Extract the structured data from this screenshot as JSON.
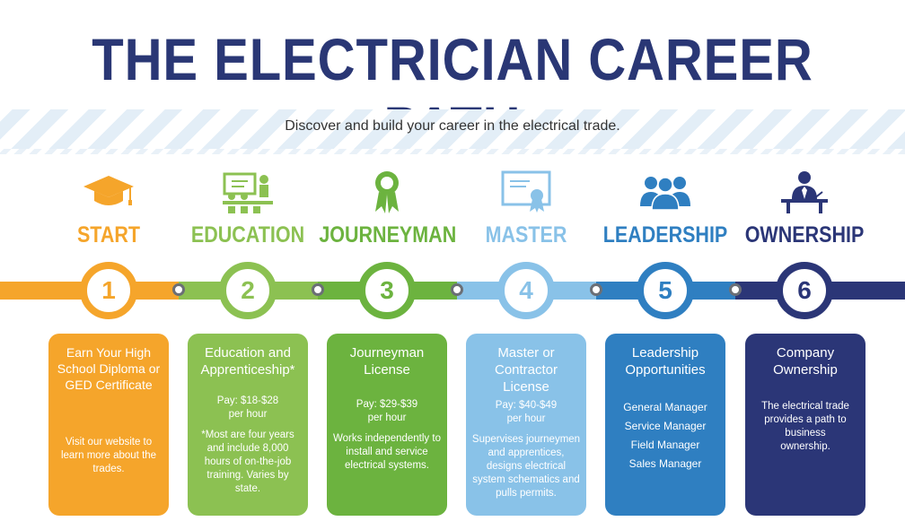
{
  "title": "THE ELECTRICIAN CAREER PATH",
  "subtitle": "Discover and build your career in the electrical trade.",
  "colors": {
    "title": "#2a3775",
    "start": "#f5a52b",
    "education": "#8cc152",
    "journeyman": "#6cb33f",
    "master": "#89c2e8",
    "leadership": "#2f7fc1",
    "ownership": "#2b3677"
  },
  "steps": [
    {
      "label": "START",
      "number": "1",
      "icon": "graduation-cap-icon",
      "card_title": "Earn Your High School Diploma or GED Certificate",
      "pay": "",
      "body": "Visit our website to learn more about the trades.",
      "list": []
    },
    {
      "label": "EDUCATION",
      "number": "2",
      "icon": "classroom-icon",
      "card_title": "Education and Apprenticeship*",
      "pay": "Pay: $18-$28 per hour",
      "body": "*Most are four years and include 8,000 hours of on-the-job training. Varies by state.",
      "list": []
    },
    {
      "label": "JOURNEYMAN",
      "number": "3",
      "icon": "award-ribbon-icon",
      "card_title": "Journeyman License",
      "pay": "Pay: $29-$39 per hour",
      "body": "Works independently to install and service electrical systems.",
      "list": []
    },
    {
      "label": "MASTER",
      "number": "4",
      "icon": "certificate-icon",
      "card_title": "Master or Contractor License",
      "pay": "Pay: $40-$49 per hour",
      "body": "Supervises journeymen and apprentices, designs electrical system schematics and pulls permits.",
      "list": []
    },
    {
      "label": "LEADERSHIP",
      "number": "5",
      "icon": "team-icon",
      "card_title": "Leadership Opportunities",
      "pay": "",
      "body": "",
      "list": [
        "General Manager",
        "Service Manager",
        "Field Manager",
        "Sales Manager"
      ]
    },
    {
      "label": "OWNERSHIP",
      "number": "6",
      "icon": "business-owner-icon",
      "card_title": "Company Ownership",
      "pay": "",
      "body": "The electrical trade provides a path to business ownership.",
      "list": []
    }
  ]
}
